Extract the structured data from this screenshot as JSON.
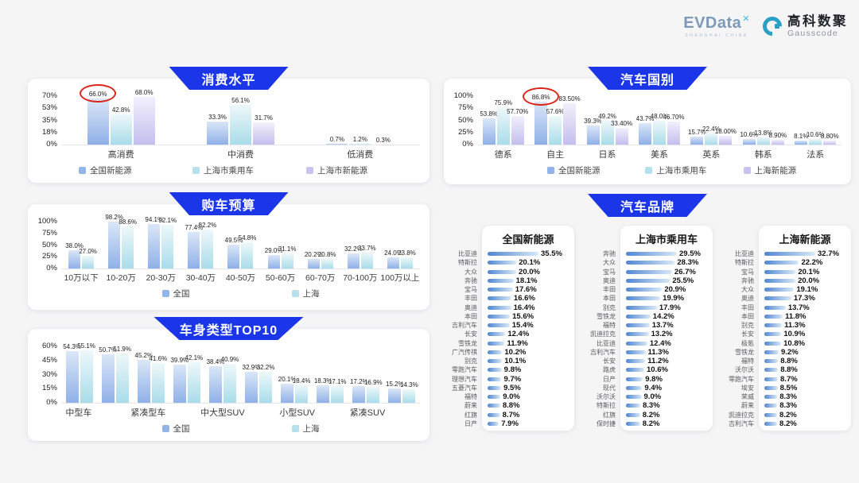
{
  "header": {
    "evdata_text": "EVData",
    "evdata_mark": "✕",
    "evdata_sub": "SHANGHAI CHINA",
    "gausscode_cn": "高科数聚",
    "gausscode_en": "Gausscode"
  },
  "colors": {
    "banner_blue": "#1b35e8",
    "highlight_red": "#da2418",
    "series": {
      "blue": [
        "#dbe7f7",
        "#8fb0e8",
        "#93b4e9"
      ],
      "teal": [
        "#eef8fa",
        "#a9dcea",
        "#b6e1ec"
      ],
      "purple": [
        "#f2f0fc",
        "#c4beee",
        "#c9c3f0"
      ]
    },
    "brand_bar": [
      "#4f86d2",
      "#d9e9f7"
    ]
  },
  "chart_data": [
    {
      "type": "bar",
      "title": "消费水平",
      "categories": [
        "高消费",
        "中消费",
        "低消费"
      ],
      "yticks": [
        "70%",
        "53%",
        "35%",
        "18%",
        "0%"
      ],
      "ymax": 70,
      "legend_position": "bottom",
      "series": [
        {
          "name": "全国新能源",
          "color": "blue",
          "values": [
            66.0,
            33.3,
            0.7
          ],
          "labels": [
            "66.0%",
            "33.3%",
            "0.7%"
          ]
        },
        {
          "name": "上海市乘用车",
          "color": "teal",
          "values": [
            42.8,
            56.1,
            1.2
          ],
          "labels": [
            "42.8%",
            "56.1%",
            "1.2%"
          ]
        },
        {
          "name": "上海市新能源",
          "color": "purple",
          "values": [
            68.0,
            31.7,
            0.3
          ],
          "labels": [
            "68.0%",
            "31.7%",
            "0.3%"
          ]
        }
      ],
      "annotation": {
        "type": "red-circle",
        "series": 0,
        "category": 0,
        "label": "66.0%"
      }
    },
    {
      "type": "bar",
      "title": "购车预算",
      "categories": [
        "10万以下",
        "10-20万",
        "20-30万",
        "30-40万",
        "40-50万",
        "50-60万",
        "60-70万",
        "70-100万",
        "100万以上"
      ],
      "yticks": [
        "100%",
        "75%",
        "50%",
        "25%",
        "0%"
      ],
      "ymax": 100,
      "legend_position": "bottom",
      "series": [
        {
          "name": "全国",
          "color": "blue",
          "values": [
            38.0,
            98.2,
            94.1,
            77.4,
            49.5,
            29.0,
            20.2,
            32.2,
            24.0
          ],
          "labels": [
            "38.0%",
            "98.2%",
            "94.1%",
            "77.4%",
            "49.5%",
            "29.0%",
            "20.2%",
            "32.2%",
            "24.0%"
          ]
        },
        {
          "name": "上海",
          "color": "teal",
          "values": [
            27.0,
            88.6,
            92.1,
            82.2,
            54.8,
            31.1,
            20.8,
            33.7,
            23.8
          ],
          "labels": [
            "27.0%",
            "88.6%",
            "92.1%",
            "82.2%",
            "54.8%",
            "31.1%",
            "20.8%",
            "33.7%",
            "23.8%"
          ]
        }
      ]
    },
    {
      "type": "bar",
      "title": "车身类型TOP10",
      "categories": [
        "中型车",
        "",
        "紧凑型车",
        "",
        "中大型SUV",
        "",
        "小型SUV",
        "",
        "紧凑SUV",
        ""
      ],
      "yticks": [
        "60%",
        "45%",
        "30%",
        "15%",
        "0%"
      ],
      "ymax": 60,
      "legend_position": "bottom",
      "series": [
        {
          "name": "全国",
          "color": "blue",
          "values": [
            54.3,
            50.7,
            45.2,
            39.9,
            38.4,
            32.9,
            20.1,
            18.3,
            17.2,
            15.2
          ],
          "labels": [
            "54.3%",
            "50.7%",
            "45.2%",
            "39.9%",
            "38.4%",
            "32.9%",
            "20.1%",
            "18.3%",
            "17.2%",
            "15.2%"
          ]
        },
        {
          "name": "上海",
          "color": "teal",
          "values": [
            55.1,
            51.9,
            41.6,
            42.1,
            40.9,
            32.2,
            18.4,
            17.1,
            16.9,
            14.3
          ],
          "labels": [
            "55.1%",
            "51.9%",
            "41.6%",
            "42.1%",
            "40.9%",
            "32.2%",
            "18.4%",
            "17.1%",
            "16.9%",
            "14.3%"
          ]
        }
      ]
    },
    {
      "type": "bar",
      "title": "汽车国别",
      "categories": [
        "德系",
        "自主",
        "日系",
        "美系",
        "英系",
        "韩系",
        "法系"
      ],
      "yticks": [
        "100%",
        "75%",
        "50%",
        "25%",
        "0%"
      ],
      "ymax": 100,
      "legend_position": "bottom",
      "series": [
        {
          "name": "全国新能源",
          "color": "blue",
          "values": [
            53.8,
            86.8,
            39.3,
            43.7,
            15.7,
            10.6,
            8.1
          ],
          "labels": [
            "53.8%",
            "86.8%",
            "39.3%",
            "43.7%",
            "15.7%",
            "10.6%",
            "8.1%"
          ]
        },
        {
          "name": "上海市乘用车",
          "color": "teal",
          "values": [
            75.9,
            57.6,
            49.2,
            48.0,
            22.4,
            13.8,
            10.6
          ],
          "labels": [
            "75.9%",
            "57.6%",
            "49.2%",
            "48.0%",
            "22.4%",
            "13.8%",
            "10.6%"
          ]
        },
        {
          "name": "上海新能源",
          "color": "purple",
          "values": [
            57.7,
            83.5,
            33.4,
            46.7,
            18.0,
            8.9,
            8.8
          ],
          "labels": [
            "57.70%",
            "83.50%",
            "33.40%",
            "46.70%",
            "18.00%",
            "8.90%",
            "8.80%"
          ]
        }
      ],
      "annotation": {
        "type": "red-circle",
        "series": 0,
        "category": 1,
        "label": "86.8%"
      }
    },
    {
      "type": "bar-horizontal-list",
      "title": "汽车品牌",
      "columns": [
        {
          "header": "全国新能源",
          "items": [
            {
              "brand": "比亚迪",
              "value": 35.5,
              "label": "35.5%"
            },
            {
              "brand": "特斯拉",
              "value": 20.1,
              "label": "20.1%"
            },
            {
              "brand": "大众",
              "value": 20.0,
              "label": "20.0%"
            },
            {
              "brand": "奔驰",
              "value": 18.1,
              "label": "18.1%"
            },
            {
              "brand": "宝马",
              "value": 17.6,
              "label": "17.6%"
            },
            {
              "brand": "丰田",
              "value": 16.6,
              "label": "16.6%"
            },
            {
              "brand": "奥迪",
              "value": 16.4,
              "label": "16.4%"
            },
            {
              "brand": "本田",
              "value": 15.6,
              "label": "15.6%"
            },
            {
              "brand": "吉利汽车",
              "value": 15.4,
              "label": "15.4%"
            },
            {
              "brand": "长安",
              "value": 12.4,
              "label": "12.4%"
            },
            {
              "brand": "雪铁龙",
              "value": 11.9,
              "label": "11.9%"
            },
            {
              "brand": "广汽传祺",
              "value": 10.2,
              "label": "10.2%"
            },
            {
              "brand": "别克",
              "value": 10.1,
              "label": "10.1%"
            },
            {
              "brand": "零跑汽车",
              "value": 9.8,
              "label": "9.8%"
            },
            {
              "brand": "理想汽车",
              "value": 9.7,
              "label": "9.7%"
            },
            {
              "brand": "五菱汽车",
              "value": 9.5,
              "label": "9.5%"
            },
            {
              "brand": "福特",
              "value": 9.0,
              "label": "9.0%"
            },
            {
              "brand": "蔚来",
              "value": 8.8,
              "label": "8.8%"
            },
            {
              "brand": "红旗",
              "value": 8.7,
              "label": "8.7%"
            },
            {
              "brand": "日产",
              "value": 7.9,
              "label": "7.9%"
            }
          ]
        },
        {
          "header": "上海市乘用车",
          "items": [
            {
              "brand": "奔驰",
              "value": 29.5,
              "label": "29.5%"
            },
            {
              "brand": "大众",
              "value": 28.3,
              "label": "28.3%"
            },
            {
              "brand": "宝马",
              "value": 26.7,
              "label": "26.7%"
            },
            {
              "brand": "奥迪",
              "value": 25.5,
              "label": "25.5%"
            },
            {
              "brand": "丰田",
              "value": 20.9,
              "label": "20.9%"
            },
            {
              "brand": "本田",
              "value": 19.9,
              "label": "19.9%"
            },
            {
              "brand": "别克",
              "value": 17.9,
              "label": "17.9%"
            },
            {
              "brand": "雪铁龙",
              "value": 14.2,
              "label": "14.2%"
            },
            {
              "brand": "福特",
              "value": 13.7,
              "label": "13.7%"
            },
            {
              "brand": "凯迪拉克",
              "value": 13.2,
              "label": "13.2%"
            },
            {
              "brand": "比亚迪",
              "value": 12.4,
              "label": "12.4%"
            },
            {
              "brand": "吉利汽车",
              "value": 11.3,
              "label": "11.3%"
            },
            {
              "brand": "长安",
              "value": 11.2,
              "label": "11.2%"
            },
            {
              "brand": "路虎",
              "value": 10.6,
              "label": "10.6%"
            },
            {
              "brand": "日产",
              "value": 9.8,
              "label": "9.8%"
            },
            {
              "brand": "现代",
              "value": 9.4,
              "label": "9.4%"
            },
            {
              "brand": "沃尔沃",
              "value": 9.0,
              "label": "9.0%"
            },
            {
              "brand": "特斯拉",
              "value": 8.3,
              "label": "8.3%"
            },
            {
              "brand": "红旗",
              "value": 8.2,
              "label": "8.2%"
            },
            {
              "brand": "保时捷",
              "value": 8.2,
              "label": "8.2%"
            }
          ]
        },
        {
          "header": "上海新能源",
          "items": [
            {
              "brand": "比亚迪",
              "value": 32.7,
              "label": "32.7%"
            },
            {
              "brand": "特斯拉",
              "value": 22.2,
              "label": "22.2%"
            },
            {
              "brand": "宝马",
              "value": 20.1,
              "label": "20.1%"
            },
            {
              "brand": "奔驰",
              "value": 20.0,
              "label": "20.0%"
            },
            {
              "brand": "大众",
              "value": 19.1,
              "label": "19.1%"
            },
            {
              "brand": "奥迪",
              "value": 17.3,
              "label": "17.3%"
            },
            {
              "brand": "丰田",
              "value": 13.7,
              "label": "13.7%"
            },
            {
              "brand": "本田",
              "value": 11.8,
              "label": "11.8%"
            },
            {
              "brand": "别克",
              "value": 11.3,
              "label": "11.3%"
            },
            {
              "brand": "长安",
              "value": 10.9,
              "label": "10.9%"
            },
            {
              "brand": "极氪",
              "value": 10.8,
              "label": "10.8%"
            },
            {
              "brand": "雪铁龙",
              "value": 9.2,
              "label": "9.2%"
            },
            {
              "brand": "福特",
              "value": 8.8,
              "label": "8.8%"
            },
            {
              "brand": "沃尔沃",
              "value": 8.8,
              "label": "8.8%"
            },
            {
              "brand": "零跑汽车",
              "value": 8.7,
              "label": "8.7%"
            },
            {
              "brand": "埃安",
              "value": 8.5,
              "label": "8.5%"
            },
            {
              "brand": "荣威",
              "value": 8.3,
              "label": "8.3%"
            },
            {
              "brand": "蔚来",
              "value": 8.3,
              "label": "8.3%"
            },
            {
              "brand": "凯迪拉克",
              "value": 8.2,
              "label": "8.2%"
            },
            {
              "brand": "吉利汽车",
              "value": 8.2,
              "label": "8.2%"
            }
          ]
        }
      ]
    }
  ]
}
